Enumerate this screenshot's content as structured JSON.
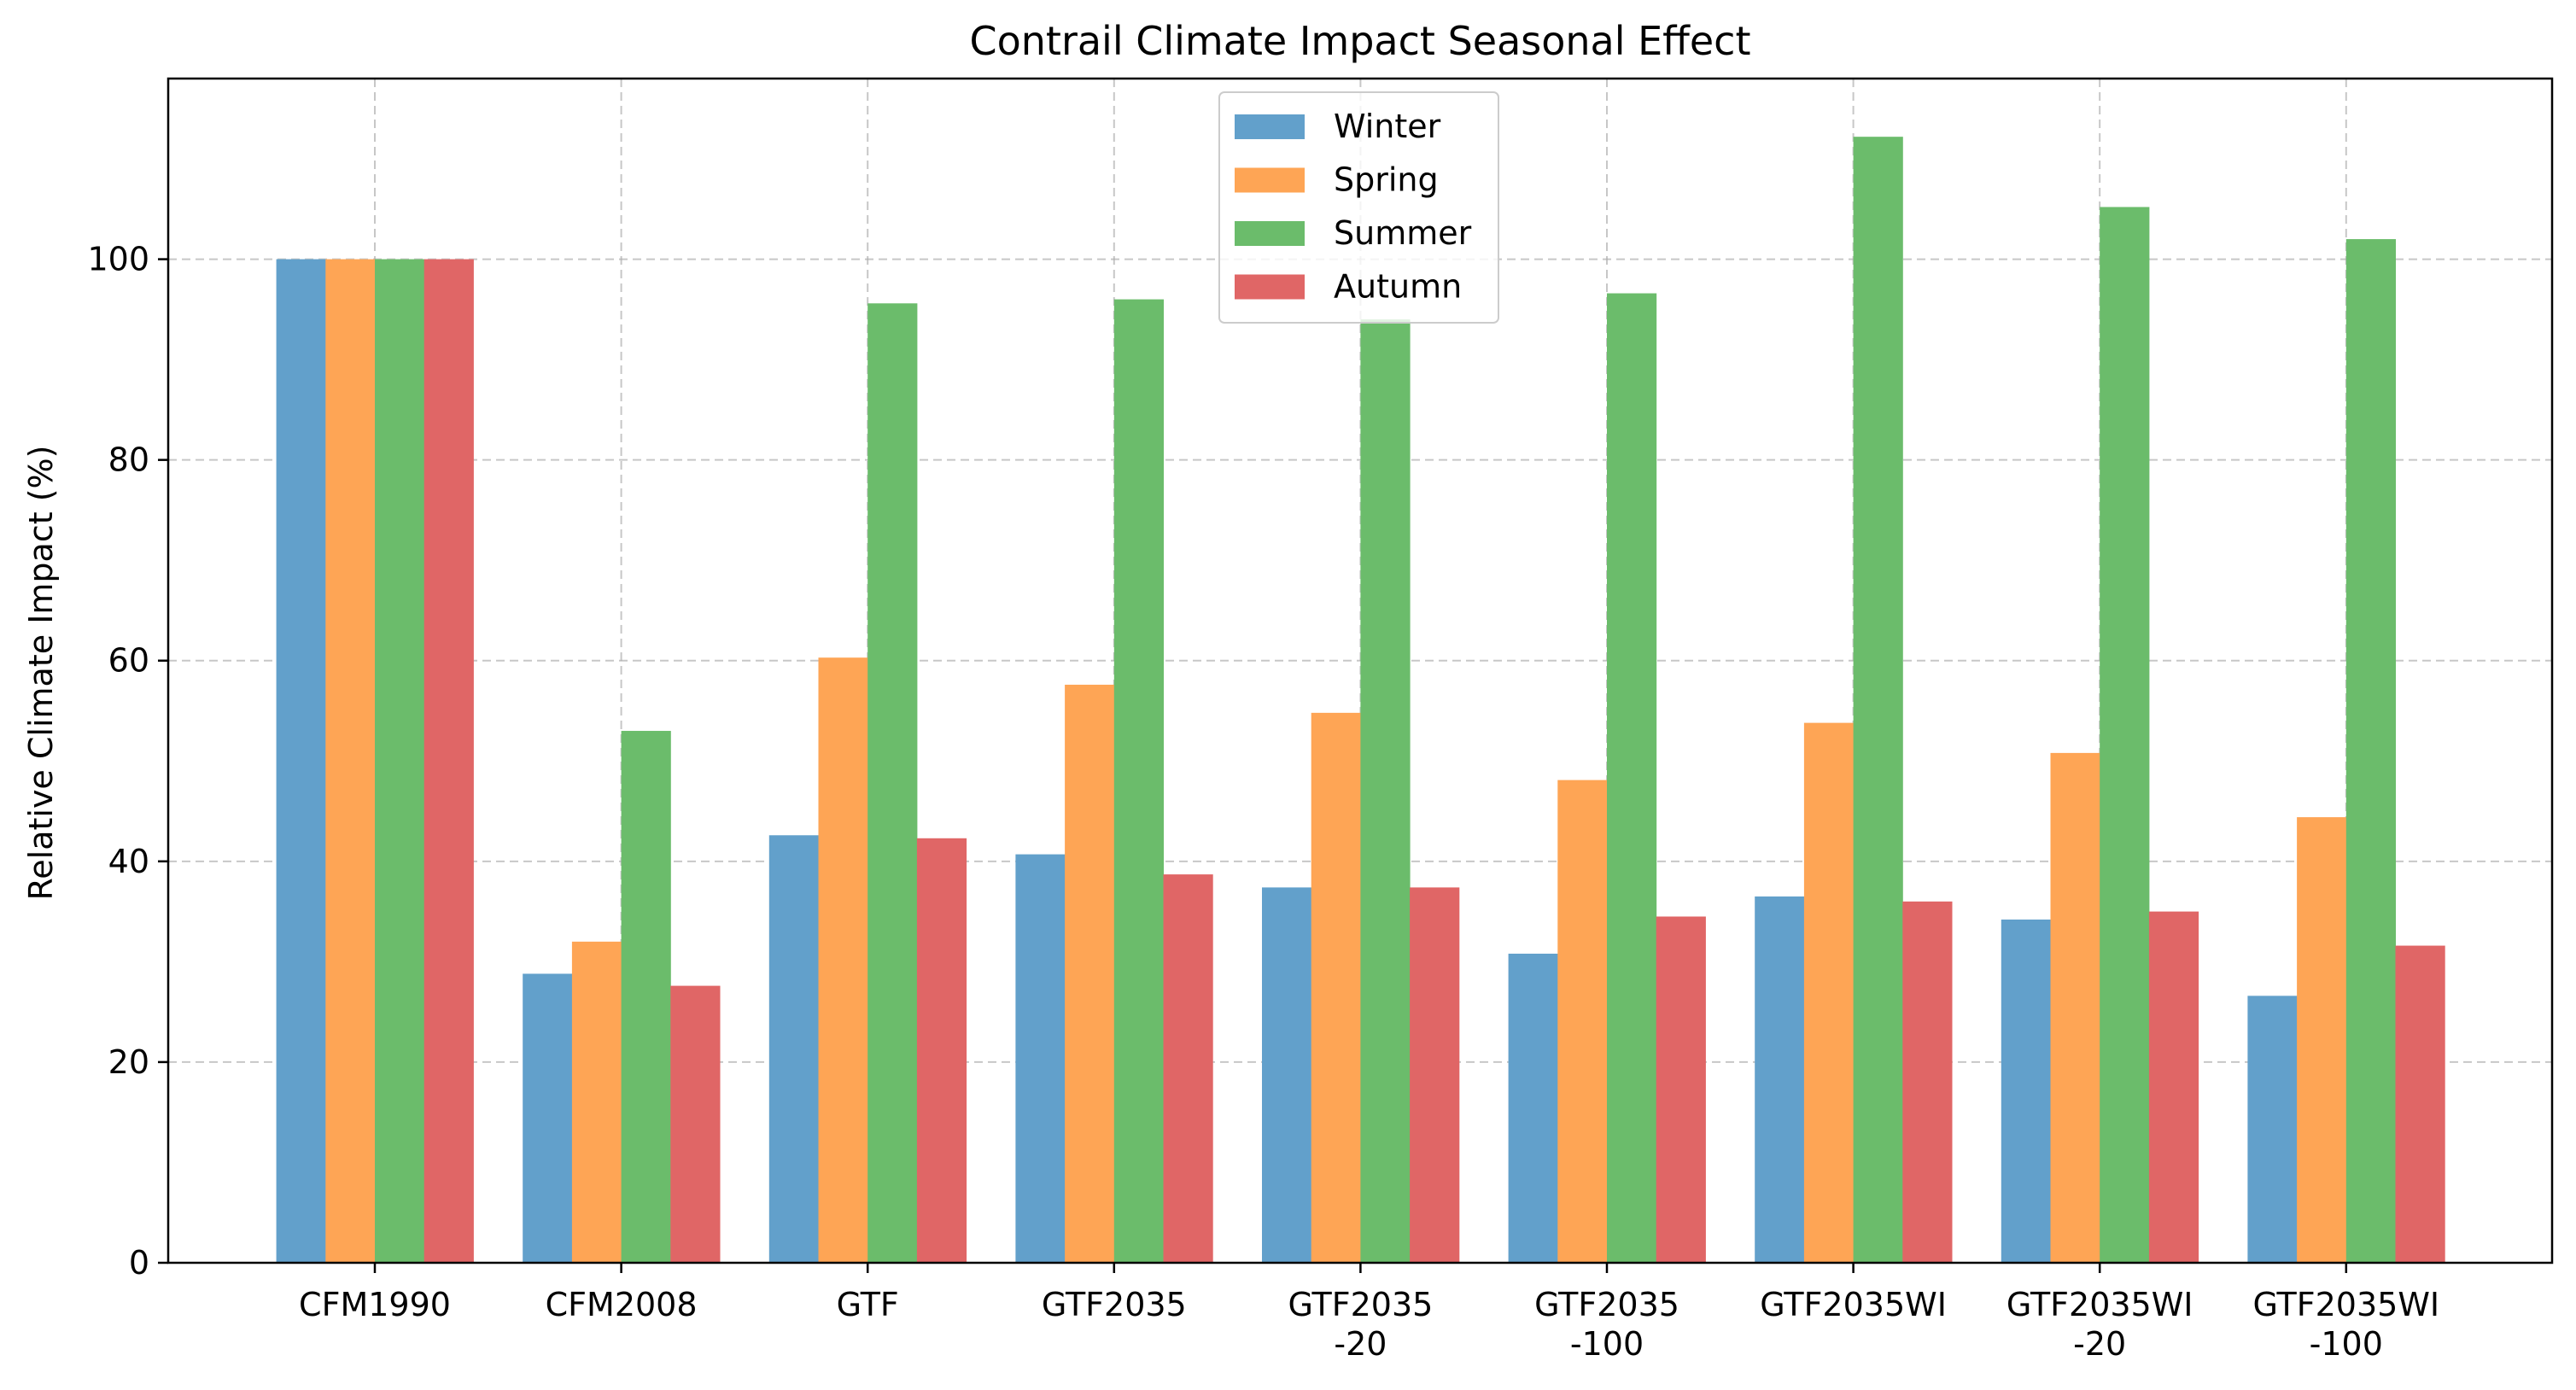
{
  "chart_data": {
    "type": "bar",
    "title": "Contrail Climate Impact Seasonal Effect",
    "xlabel": "",
    "ylabel": "Relative Climate Impact (%)",
    "ylim": [
      0,
      118
    ],
    "yticks": [
      0,
      20,
      40,
      60,
      80,
      100
    ],
    "grid": true,
    "legend_position": "top-center",
    "categories": [
      [
        "CFM1990"
      ],
      [
        "CFM2008"
      ],
      [
        "GTF"
      ],
      [
        "GTF2035"
      ],
      [
        "GTF2035",
        "-20"
      ],
      [
        "GTF2035",
        "-100"
      ],
      [
        "GTF2035WI"
      ],
      [
        "GTF2035WI",
        "-20"
      ],
      [
        "GTF2035WI",
        "-100"
      ]
    ],
    "series": [
      {
        "name": "Winter",
        "color": "#62a0cb",
        "values": [
          100,
          28.8,
          42.6,
          40.7,
          37.4,
          30.8,
          36.5,
          34.2,
          26.6
        ]
      },
      {
        "name": "Spring",
        "color": "#fea555",
        "values": [
          100,
          32.0,
          60.3,
          57.6,
          54.8,
          48.1,
          53.8,
          50.8,
          44.4
        ]
      },
      {
        "name": "Summer",
        "color": "#6bbc6b",
        "values": [
          100,
          53.0,
          95.6,
          96.0,
          94.0,
          96.6,
          112.2,
          105.2,
          102.0
        ]
      },
      {
        "name": "Autumn",
        "color": "#e06666",
        "values": [
          100,
          27.6,
          42.3,
          38.7,
          37.4,
          34.5,
          36.0,
          35.0,
          31.6
        ]
      }
    ]
  }
}
